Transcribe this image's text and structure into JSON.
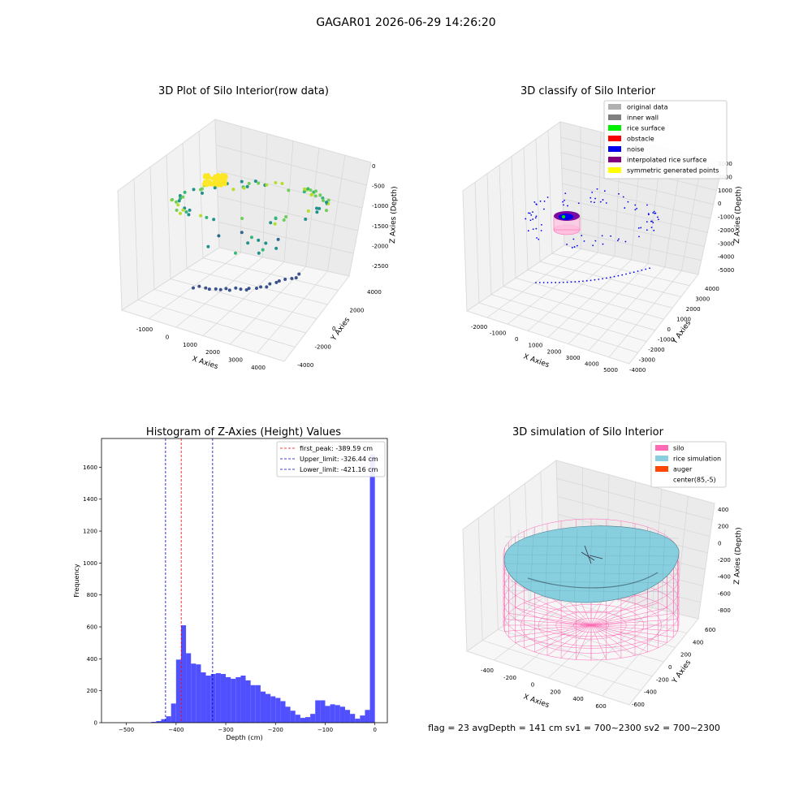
{
  "figure": {
    "suptitle": "GAGAR01 2026-06-29 14:26:20",
    "footer": "flag = 23   avgDepth = 141 cm   sv1 = 700~2300   sv2 = 700~2300"
  },
  "colors": {
    "hist_bar": "#5050ff",
    "silo": "#ff69b4",
    "rice": "#87cedf",
    "auger": "#ff4500",
    "original": "#b0b0b0",
    "inner_wall": "#808080",
    "rice_surface": "#00ee00",
    "obstacle": "#ff0000",
    "noise": "#0000ee",
    "interp": "#800080",
    "sym": "#ffff00"
  },
  "chart_data": [
    {
      "type": "scatter",
      "projection": "3d",
      "title": "3D Plot of Silo Interior(row data)",
      "xlabel": "X Axies",
      "ylabel": "Y Axies",
      "zlabel": "Z Axies (Depth)",
      "xticks": [
        "-1000",
        "0",
        "1000",
        "2000",
        "3000",
        "4000"
      ],
      "yticks": [
        "-4000",
        "-2000",
        "0",
        "2000",
        "4000"
      ],
      "zticks": [
        "0",
        "-500",
        "-1000",
        "-1500",
        "-2000",
        "-2500"
      ],
      "colormap": "viridis",
      "grid": true
    },
    {
      "type": "scatter",
      "projection": "3d",
      "title": "3D classify of Silo Interior",
      "xlabel": "X Axies",
      "ylabel": "Y Axies",
      "zlabel": "Z Axies (Depth)",
      "xticks": [
        "-2000",
        "-1000",
        "0",
        "1000",
        "2000",
        "3000",
        "4000",
        "5000"
      ],
      "yticks": [
        "-4000",
        "-3000",
        "-2000",
        "-1000",
        "0",
        "1000",
        "2000",
        "3000",
        "4000"
      ],
      "zticks": [
        "3000",
        "2000",
        "1000",
        "0",
        "-1000",
        "-2000",
        "-3000",
        "-4000",
        "-5000"
      ],
      "legend": [
        "original data",
        "inner wall",
        "rice surface",
        "obstacle",
        "noise",
        "interpolated rice surface",
        "symmetric generated points"
      ],
      "legend_position": "top-right",
      "grid": true
    },
    {
      "type": "histogram",
      "title": "Histogram of Z-Axies (Height) Values",
      "xlabel": "Depth (cm)",
      "ylabel": "Frequency",
      "xlim": [
        -550,
        25
      ],
      "ylim": [
        0,
        1780
      ],
      "xticks": [
        -500,
        -400,
        -300,
        -200,
        -100,
        0
      ],
      "yticks": [
        0,
        200,
        400,
        600,
        800,
        1000,
        1200,
        1400,
        1600
      ],
      "bin_width": 10,
      "bins": [
        {
          "x0": -450,
          "count": 5
        },
        {
          "x0": -440,
          "count": 10
        },
        {
          "x0": -430,
          "count": 22
        },
        {
          "x0": -420,
          "count": 40
        },
        {
          "x0": -410,
          "count": 120
        },
        {
          "x0": -400,
          "count": 395
        },
        {
          "x0": -390,
          "count": 610
        },
        {
          "x0": -380,
          "count": 435
        },
        {
          "x0": -370,
          "count": 370
        },
        {
          "x0": -360,
          "count": 365
        },
        {
          "x0": -350,
          "count": 315
        },
        {
          "x0": -340,
          "count": 295
        },
        {
          "x0": -330,
          "count": 305
        },
        {
          "x0": -320,
          "count": 310
        },
        {
          "x0": -310,
          "count": 305
        },
        {
          "x0": -300,
          "count": 285
        },
        {
          "x0": -290,
          "count": 275
        },
        {
          "x0": -280,
          "count": 285
        },
        {
          "x0": -270,
          "count": 295
        },
        {
          "x0": -260,
          "count": 265
        },
        {
          "x0": -250,
          "count": 235
        },
        {
          "x0": -240,
          "count": 235
        },
        {
          "x0": -230,
          "count": 195
        },
        {
          "x0": -220,
          "count": 180
        },
        {
          "x0": -210,
          "count": 165
        },
        {
          "x0": -200,
          "count": 155
        },
        {
          "x0": -190,
          "count": 135
        },
        {
          "x0": -180,
          "count": 100
        },
        {
          "x0": -170,
          "count": 75
        },
        {
          "x0": -160,
          "count": 50
        },
        {
          "x0": -150,
          "count": 30
        },
        {
          "x0": -140,
          "count": 35
        },
        {
          "x0": -130,
          "count": 55
        },
        {
          "x0": -120,
          "count": 140
        },
        {
          "x0": -110,
          "count": 140
        },
        {
          "x0": -100,
          "count": 105
        },
        {
          "x0": -90,
          "count": 115
        },
        {
          "x0": -80,
          "count": 110
        },
        {
          "x0": -70,
          "count": 100
        },
        {
          "x0": -60,
          "count": 80
        },
        {
          "x0": -50,
          "count": 55
        },
        {
          "x0": -40,
          "count": 25
        },
        {
          "x0": -30,
          "count": 45
        },
        {
          "x0": -20,
          "count": 80
        },
        {
          "x0": -10,
          "count": 1680
        }
      ],
      "lines": [
        {
          "label": "first_peak: -389.59 cm",
          "x": -389.59,
          "color": "#ff0000"
        },
        {
          "label": "Upper_limit: -326.44 cm",
          "x": -326.44,
          "color": "#0000cc"
        },
        {
          "label": "Lower_limit: -421.16 cm",
          "x": -421.16,
          "color": "#0000cc"
        }
      ],
      "legend_position": "top-right"
    },
    {
      "type": "surface",
      "projection": "3d",
      "title": "3D simulation of Silo Interior",
      "xlabel": "X Axies",
      "ylabel": "Y Axies",
      "zlabel": "Z Axies (Depth)",
      "xticks": [
        "-400",
        "-200",
        "0",
        "200",
        "400",
        "600"
      ],
      "yticks": [
        "-600",
        "-400",
        "-200",
        "0",
        "200",
        "400",
        "600"
      ],
      "zticks": [
        "400",
        "200",
        "0",
        "-200",
        "-400",
        "-600",
        "-800"
      ],
      "legend": [
        "silo",
        "rice simulation",
        "auger",
        "center(85,-5)"
      ],
      "legend_position": "top-right",
      "grid": true
    }
  ]
}
